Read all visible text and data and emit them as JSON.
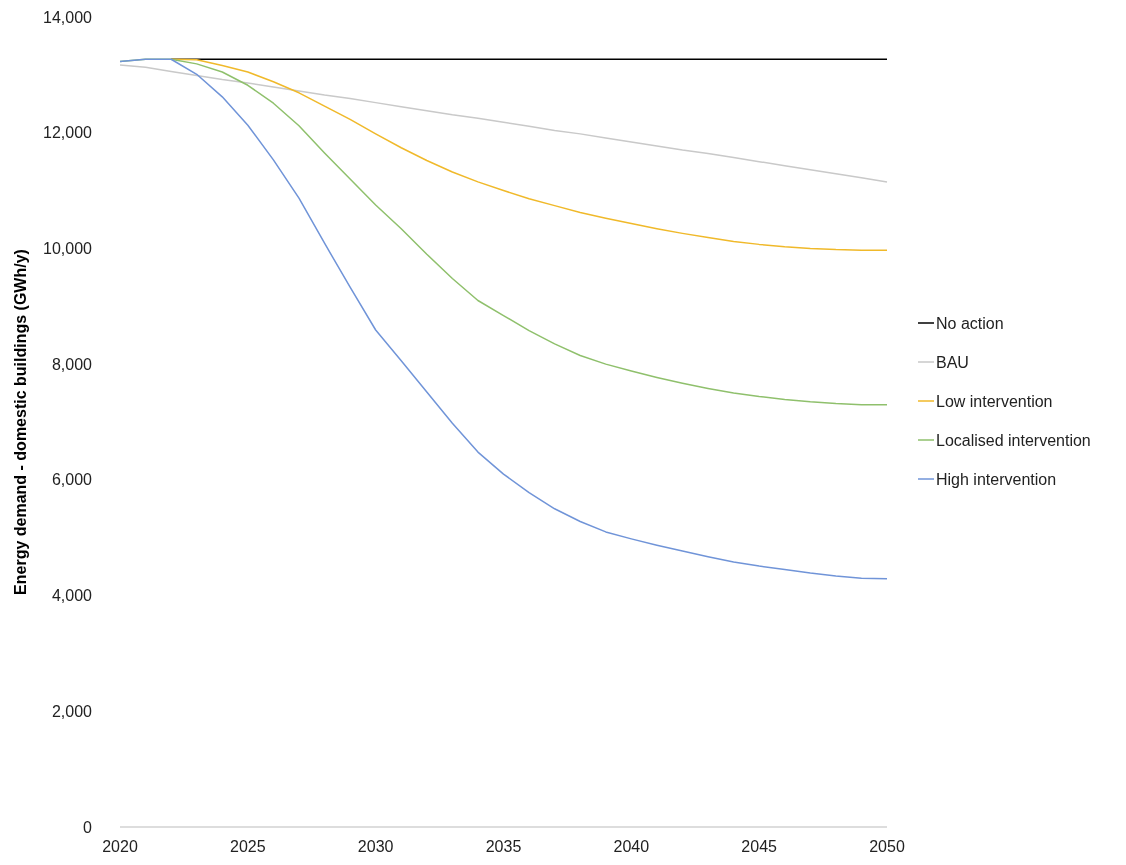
{
  "chart_data": {
    "type": "line",
    "ylabel": "Energy demand - domestic buildings (GWh/y)",
    "x": [
      2020,
      2021,
      2022,
      2023,
      2024,
      2025,
      2026,
      2027,
      2028,
      2029,
      2030,
      2031,
      2032,
      2033,
      2034,
      2035,
      2036,
      2037,
      2038,
      2039,
      2040,
      2041,
      2042,
      2043,
      2044,
      2045,
      2046,
      2047,
      2048,
      2049,
      2050
    ],
    "xlim": [
      2020,
      2050
    ],
    "xticks": [
      2020,
      2025,
      2030,
      2035,
      2040,
      2045,
      2050
    ],
    "ylim": [
      0,
      14000
    ],
    "yticks": [
      {
        "value": 0,
        "label": "0"
      },
      {
        "value": 2000,
        "label": "2,000"
      },
      {
        "value": 4000,
        "label": "4,000"
      },
      {
        "value": 6000,
        "label": "6,000"
      },
      {
        "value": 8000,
        "label": "8,000"
      },
      {
        "value": 10000,
        "label": "10,000"
      },
      {
        "value": 12000,
        "label": "12,000"
      },
      {
        "value": 14000,
        "label": "14,000"
      }
    ],
    "grid": false,
    "legend": "right",
    "marker": "none",
    "line_style": "solid",
    "series": [
      {
        "name": "No action",
        "color": "#000000",
        "values": [
          null,
          null,
          13270,
          13270,
          13270,
          13270,
          13270,
          13270,
          13270,
          13270,
          13270,
          13270,
          13270,
          13270,
          13270,
          13270,
          13270,
          13270,
          13270,
          13270,
          13270,
          13270,
          13270,
          13270,
          13270,
          13270,
          13270,
          13270,
          13270,
          13270,
          13270
        ]
      },
      {
        "name": "BAU",
        "color": "#c9c9c9",
        "values": [
          13170,
          13130,
          13060,
          12990,
          12920,
          12860,
          12790,
          12720,
          12650,
          12590,
          12520,
          12450,
          12380,
          12310,
          12250,
          12180,
          12110,
          12040,
          11980,
          11910,
          11840,
          11770,
          11700,
          11640,
          11570,
          11500,
          11430,
          11360,
          11290,
          11220,
          11150
        ]
      },
      {
        "name": "Low intervention",
        "color": "#f0b92a",
        "values": [
          null,
          null,
          13270,
          13260,
          13160,
          13050,
          12880,
          12690,
          12460,
          12230,
          11980,
          11740,
          11520,
          11320,
          11150,
          11000,
          10860,
          10740,
          10620,
          10520,
          10430,
          10340,
          10260,
          10190,
          10120,
          10070,
          10030,
          10000,
          9980,
          9970,
          9970
        ]
      },
      {
        "name": "Localised intervention",
        "color": "#8fc06c",
        "values": [
          13230,
          13270,
          13270,
          13190,
          13050,
          12820,
          12510,
          12120,
          11650,
          11200,
          10750,
          10340,
          9900,
          9480,
          9100,
          8840,
          8580,
          8350,
          8150,
          8000,
          7880,
          7770,
          7670,
          7580,
          7500,
          7440,
          7390,
          7350,
          7320,
          7300,
          7300
        ]
      },
      {
        "name": "High intervention",
        "color": "#7094d8",
        "values": [
          13230,
          13270,
          13270,
          13010,
          12620,
          12130,
          11530,
          10870,
          10090,
          9330,
          8590,
          8060,
          7520,
          6980,
          6480,
          6100,
          5780,
          5500,
          5280,
          5100,
          4980,
          4870,
          4770,
          4670,
          4580,
          4510,
          4450,
          4390,
          4340,
          4300,
          4290
        ]
      }
    ]
  }
}
